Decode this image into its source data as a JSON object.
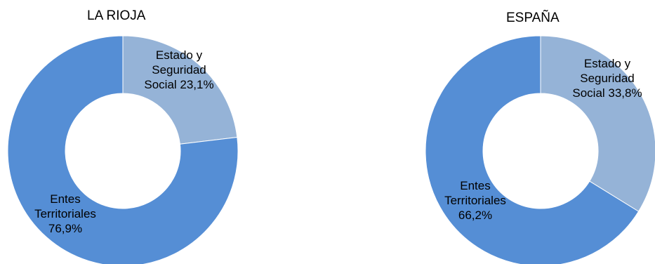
{
  "chart_data": [
    {
      "type": "pie",
      "title": "LA RIOJA",
      "slices": [
        {
          "label_lines": [
            "Estado y",
            "Seguridad",
            "Social 23,1%"
          ],
          "value": 23.1,
          "color": "#95b3d7"
        },
        {
          "label_lines": [
            "Entes",
            "Territoriales",
            "76,9%"
          ],
          "value": 76.9,
          "color": "#558ed5"
        }
      ]
    },
    {
      "type": "pie",
      "title": "ESPAÑA",
      "slices": [
        {
          "label_lines": [
            "Estado y",
            "Seguridad",
            "Social 33,8%"
          ],
          "value": 33.8,
          "color": "#95b3d7"
        },
        {
          "label_lines": [
            "Entes",
            "Territoriales",
            "66,2%"
          ],
          "value": 66.2,
          "color": "#558ed5"
        }
      ]
    }
  ]
}
